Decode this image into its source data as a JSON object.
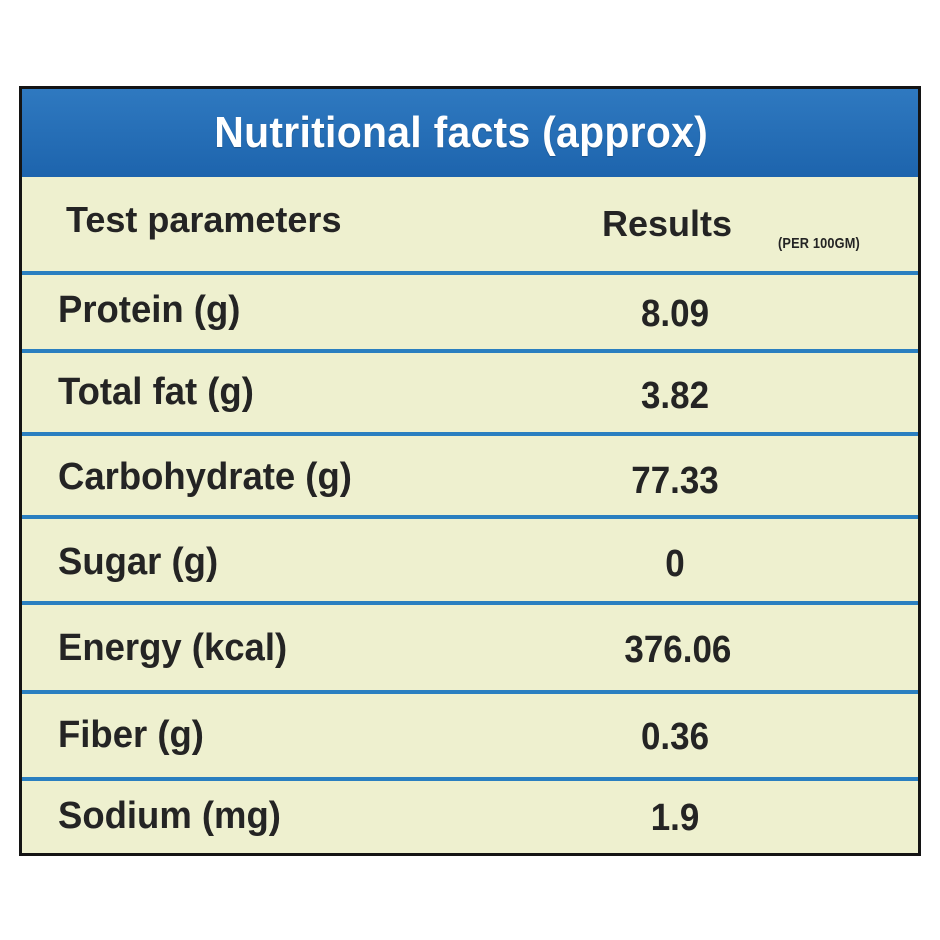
{
  "title": "Nutritional facts (approx)",
  "columns": {
    "parameter": "Test parameters",
    "result": "Results",
    "result_note": "(PER 100GM)"
  },
  "rows": [
    {
      "parameter": "Protein  (g)",
      "result": "8.09"
    },
    {
      "parameter": "Total fat  (g)",
      "result": "3.82"
    },
    {
      "parameter": "Carbohydrate  (g)",
      "result": "77.33"
    },
    {
      "parameter": "Sugar (g)",
      "result": "0"
    },
    {
      "parameter": "Energy  (kcal)",
      "result": "376.06"
    },
    {
      "parameter": "Fiber  (g)",
      "result": "0.36"
    },
    {
      "parameter": "Sodium  (mg)",
      "result": "1.9"
    }
  ],
  "colors": {
    "header_bg": "#1d64ad",
    "panel_bg": "#eef0cf",
    "divider": "#2a7fc0",
    "text": "#242424"
  }
}
